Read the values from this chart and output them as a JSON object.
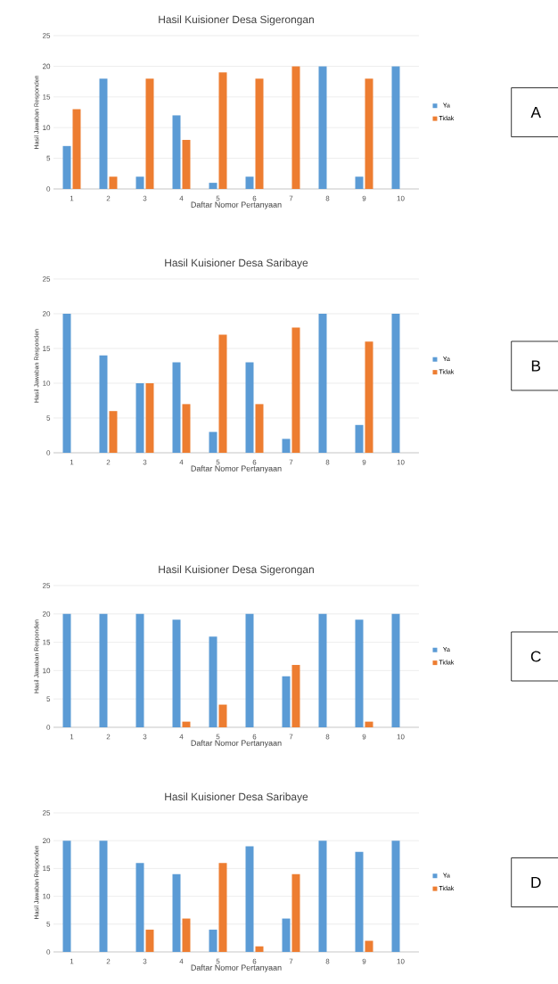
{
  "chart_data": [
    {
      "type": "bar",
      "title": "Hasil Kuisioner Desa Sigerongan",
      "xlabel": "Daftar Nomor Pertanyaan",
      "ylabel": "Hasil Jawaban Responden",
      "categories": [
        "1",
        "2",
        "3",
        "4",
        "5",
        "6",
        "7",
        "8",
        "9",
        "10"
      ],
      "series": [
        {
          "name": "Ya",
          "color": "#5b9bd5",
          "values": [
            7,
            18,
            2,
            12,
            1,
            2,
            0,
            20,
            2,
            20
          ]
        },
        {
          "name": "Tidak",
          "color": "#ed7d31",
          "values": [
            13,
            2,
            18,
            8,
            19,
            18,
            20,
            0,
            18,
            0
          ]
        }
      ],
      "ylim": [
        0,
        25
      ],
      "yticks": [
        0,
        5,
        10,
        15,
        20,
        25
      ],
      "grid": "y",
      "legend": "right",
      "annotations": [
        "A"
      ]
    },
    {
      "type": "bar",
      "title": "Hasil Kuisioner Desa Saribaye",
      "xlabel": "Daftar Nomor Pertanyaan",
      "ylabel": "Hasil Jawaban Responden",
      "categories": [
        "1",
        "2",
        "3",
        "4",
        "5",
        "6",
        "7",
        "8",
        "9",
        "10"
      ],
      "series": [
        {
          "name": "Ya",
          "color": "#5b9bd5",
          "values": [
            20,
            14,
            10,
            13,
            3,
            13,
            2,
            20,
            4,
            20
          ]
        },
        {
          "name": "Tidak",
          "color": "#ed7d31",
          "values": [
            0,
            6,
            10,
            7,
            17,
            7,
            18,
            0,
            16,
            0
          ]
        }
      ],
      "ylim": [
        0,
        25
      ],
      "yticks": [
        0,
        5,
        10,
        15,
        20,
        25
      ],
      "grid": "y",
      "legend": "right",
      "annotations": [
        "B"
      ]
    },
    {
      "type": "bar",
      "title": "Hasil Kuisioner Desa Sigerongan",
      "xlabel": "Daftar Nomor Pertanyaan",
      "ylabel": "Hasil Jawaban Responden",
      "categories": [
        "1",
        "2",
        "3",
        "4",
        "5",
        "6",
        "7",
        "8",
        "9",
        "10"
      ],
      "series": [
        {
          "name": "Ya",
          "color": "#5b9bd5",
          "values": [
            20,
            20,
            20,
            19,
            16,
            20,
            9,
            20,
            19,
            20
          ]
        },
        {
          "name": "Tidak",
          "color": "#ed7d31",
          "values": [
            0,
            0,
            0,
            1,
            4,
            0,
            11,
            0,
            1,
            0
          ]
        }
      ],
      "ylim": [
        0,
        25
      ],
      "yticks": [
        0,
        5,
        10,
        15,
        20,
        25
      ],
      "grid": "y",
      "legend": "right",
      "annotations": [
        "C"
      ]
    },
    {
      "type": "bar",
      "title": "Hasil Kuisioner Desa Saribaye",
      "xlabel": "Daftar Nomor Pertanyaan",
      "ylabel": "Hasil Jawaban Responden",
      "categories": [
        "1",
        "2",
        "3",
        "4",
        "5",
        "6",
        "7",
        "8",
        "9",
        "10"
      ],
      "series": [
        {
          "name": "Ya",
          "color": "#5b9bd5",
          "values": [
            20,
            20,
            16,
            14,
            4,
            19,
            6,
            20,
            18,
            20
          ]
        },
        {
          "name": "Tidak",
          "color": "#ed7d31",
          "values": [
            0,
            0,
            4,
            6,
            16,
            1,
            14,
            0,
            2,
            0
          ]
        }
      ],
      "ylim": [
        0,
        25
      ],
      "yticks": [
        0,
        5,
        10,
        15,
        20,
        25
      ],
      "grid": "y",
      "legend": "right",
      "annotations": [
        "D"
      ]
    }
  ]
}
